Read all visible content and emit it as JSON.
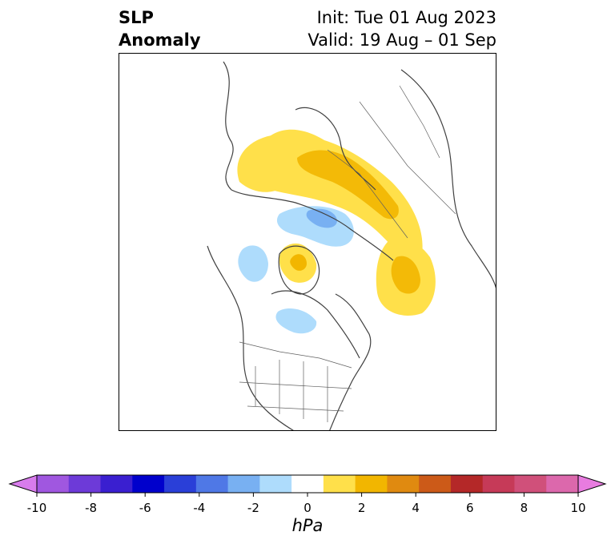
{
  "title": {
    "left_line1": "SLP",
    "left_line2": "Anomaly",
    "right_line1": "Init: Tue 01 Aug 2023",
    "right_line2": "Valid: 19 Aug – 01 Sep"
  },
  "map": {
    "projection": "north-polar-stereographic",
    "features": [
      "coastlines",
      "country-borders",
      "us-state-borders"
    ],
    "anomaly_regions": [
      {
        "name": "northern-europe-russia-positive",
        "sign": "positive",
        "peak_hpa": 3
      },
      {
        "name": "siberia-positive",
        "sign": "positive",
        "peak_hpa": 3
      },
      {
        "name": "barents-negative",
        "sign": "negative",
        "peak_hpa": -2
      },
      {
        "name": "greenland-positive",
        "sign": "positive",
        "peak_hpa": 2
      },
      {
        "name": "alaska-negative",
        "sign": "negative",
        "peak_hpa": -1
      },
      {
        "name": "hudson-bay-negative",
        "sign": "negative",
        "peak_hpa": -1
      }
    ]
  },
  "colorbar": {
    "ticks": [
      "-10",
      "-8",
      "-6",
      "-4",
      "-2",
      "0",
      "2",
      "4",
      "6",
      "8",
      "10"
    ],
    "unit": "hPa",
    "colors": [
      "#d87cec",
      "#a057e0",
      "#6d3ad8",
      "#3a1fd0",
      "#0000cc",
      "#2a3fd8",
      "#4f78e6",
      "#78b0f2",
      "#aedcfc",
      "#ffffff",
      "#ffe04a",
      "#f2b600",
      "#e08a10",
      "#cc5a18",
      "#b42828",
      "#c63a58",
      "#d0507a",
      "#dc68ac",
      "#e87ce0"
    ],
    "extend_left_color": "#d87cec",
    "extend_right_color": "#e87ce0"
  }
}
